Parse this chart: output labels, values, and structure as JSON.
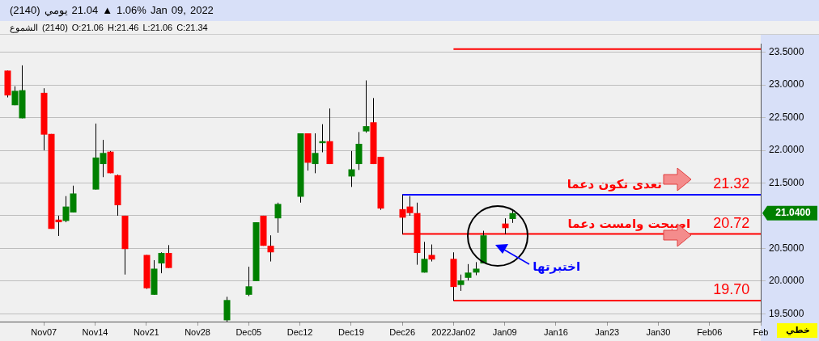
{
  "chart_data": {
    "type": "candlestick",
    "title": "(2140)  يومي  21.04 ▲ 1.06%  Jan 09, 2022",
    "subtitle": "الشموع (2140) O:21.06 H:21.46 L:21.06 C:21.34",
    "x": [
      "2021-11-02",
      "2021-11-03",
      "2021-11-04",
      "2021-11-07",
      "2021-11-08",
      "2021-11-09",
      "2021-11-10",
      "2021-11-11",
      "2021-11-14",
      "2021-11-15",
      "2021-11-16",
      "2021-11-17",
      "2021-11-18",
      "2021-11-21",
      "2021-11-22",
      "2021-11-23",
      "2021-11-24",
      "2021-12-02",
      "2021-12-05",
      "2021-12-06",
      "2021-12-07",
      "2021-12-08",
      "2021-12-09",
      "2021-12-12",
      "2021-12-13",
      "2021-12-14",
      "2021-12-15",
      "2021-12-16",
      "2021-12-19",
      "2021-12-20",
      "2021-12-21",
      "2021-12-22",
      "2021-12-23",
      "2021-12-26",
      "2021-12-27",
      "2021-12-28",
      "2021-12-29",
      "2021-12-30",
      "2022-01-02",
      "2022-01-03",
      "2022-01-04",
      "2022-01-05",
      "2022-01-06",
      "2022-01-09",
      "2022-01-10"
    ],
    "ohlc": [
      [
        23.22,
        23.22,
        22.81,
        22.84
      ],
      [
        22.69,
        22.98,
        22.69,
        22.91
      ],
      [
        22.49,
        23.3,
        22.49,
        22.92
      ],
      [
        22.88,
        22.95,
        22.0,
        22.24
      ],
      [
        22.25,
        22.25,
        20.8,
        20.8
      ],
      [
        20.94,
        21.0,
        20.69,
        20.9
      ],
      [
        20.92,
        21.3,
        20.9,
        21.14
      ],
      [
        21.05,
        21.46,
        21.05,
        21.34
      ],
      [
        21.4,
        22.41,
        21.4,
        21.89
      ],
      [
        21.79,
        22.16,
        21.59,
        21.96
      ],
      [
        21.98,
        21.99,
        21.65,
        21.65
      ],
      [
        21.62,
        21.63,
        21.0,
        21.16
      ],
      [
        21.0,
        21.0,
        20.1,
        20.49
      ],
      [
        20.4,
        20.4,
        19.88,
        19.89
      ],
      [
        19.79,
        20.32,
        19.79,
        20.19
      ],
      [
        20.27,
        20.44,
        20.12,
        20.43
      ],
      [
        20.43,
        20.55,
        20.2,
        20.2
      ],
      [
        19.4,
        19.76,
        19.38,
        19.71
      ],
      [
        19.79,
        20.22,
        19.77,
        19.92
      ],
      [
        20.0,
        20.9,
        20.0,
        20.9
      ],
      [
        21.0,
        21.0,
        20.54,
        20.54
      ],
      [
        20.54,
        20.7,
        20.3,
        20.44
      ],
      [
        20.96,
        21.2,
        20.74,
        21.18
      ],
      [
        21.29,
        22.26,
        21.2,
        22.26
      ],
      [
        22.26,
        22.26,
        21.69,
        21.81
      ],
      [
        21.79,
        22.26,
        21.65,
        21.96
      ],
      [
        22.11,
        22.4,
        21.97,
        22.14
      ],
      [
        22.14,
        22.64,
        21.79,
        21.79
      ],
      [
        21.6,
        21.99,
        21.44,
        21.71
      ],
      [
        21.79,
        22.28,
        21.7,
        22.1
      ],
      [
        22.29,
        23.07,
        22.27,
        22.37
      ],
      [
        22.43,
        22.8,
        21.79,
        21.79
      ],
      [
        21.9,
        21.9,
        21.09,
        21.11
      ],
      [
        21.1,
        21.32,
        20.72,
        20.97
      ],
      [
        21.14,
        21.3,
        21.0,
        21.04
      ],
      [
        21.04,
        21.2,
        20.25,
        20.43
      ],
      [
        20.13,
        20.6,
        20.13,
        20.34
      ],
      [
        20.4,
        20.56,
        20.3,
        20.33
      ],
      [
        20.34,
        20.44,
        19.7,
        19.91
      ],
      [
        19.94,
        20.1,
        19.85,
        20.01
      ],
      [
        20.05,
        20.26,
        20.01,
        20.13
      ],
      [
        20.13,
        20.29,
        20.09,
        20.19
      ],
      [
        20.27,
        20.77,
        20.27,
        20.7
      ],
      [
        20.88,
        20.96,
        20.72,
        20.81
      ],
      [
        20.95,
        21.1,
        20.89,
        21.04
      ]
    ],
    "colors": [
      "#ff0000",
      "#008000",
      "#008000",
      "#ff0000",
      "#ff0000",
      "#ff0000",
      "#008000",
      "#008000",
      "#008000",
      "#008000",
      "#ff0000",
      "#ff0000",
      "#ff0000",
      "#ff0000",
      "#008000",
      "#008000",
      "#ff0000",
      "#008000",
      "#008000",
      "#008000",
      "#ff0000",
      "#ff0000",
      "#008000",
      "#008000",
      "#ff0000",
      "#008000",
      "#008000",
      "#ff0000",
      "#008000",
      "#008000",
      "#008000",
      "#ff0000",
      "#ff0000",
      "#ff0000",
      "#ff0000",
      "#ff0000",
      "#008000",
      "#ff0000",
      "#ff0000",
      "#008000",
      "#008000",
      "#008000",
      "#008000",
      "#ff0000",
      "#008000"
    ],
    "series": [
      {
        "type": "line",
        "color": "#ff0000",
        "x": [
          "2022-01-02",
          "2022-02-13"
        ],
        "values": [
          23.55,
          23.55
        ]
      },
      {
        "type": "line",
        "color": "#0000ff",
        "x": [
          "2021-12-26",
          "2022-02-13"
        ],
        "values": [
          21.32,
          21.32
        ]
      },
      {
        "type": "line",
        "color": "#ff0000",
        "x": [
          "2021-12-26",
          "2022-02-13"
        ],
        "values": [
          20.72,
          20.72
        ]
      },
      {
        "type": "line",
        "color": "#ff0000",
        "x": [
          "2022-01-02",
          "2022-02-13"
        ],
        "values": [
          19.7,
          19.7
        ]
      }
    ],
    "xlim": [
      "2021-11-01",
      "2022-02-13"
    ],
    "xticks": [
      {
        "value": "2021-11-07",
        "label": "Nov07"
      },
      {
        "value": "2021-11-14",
        "label": "Nov14"
      },
      {
        "value": "2021-11-21",
        "label": "Nov21"
      },
      {
        "value": "2021-11-28",
        "label": "Nov28"
      },
      {
        "value": "2021-12-05",
        "label": "Dec05"
      },
      {
        "value": "2021-12-12",
        "label": "Dec12"
      },
      {
        "value": "2021-12-19",
        "label": "Dec19"
      },
      {
        "value": "2021-12-26",
        "label": "Dec26"
      },
      {
        "value": "2022-01-02",
        "label": "2022Jan02"
      },
      {
        "value": "2022-01-09",
        "label": "Jan09"
      },
      {
        "value": "2022-01-16",
        "label": "Jan16"
      },
      {
        "value": "2022-01-23",
        "label": "Jan23"
      },
      {
        "value": "2022-01-30",
        "label": "Jan30"
      },
      {
        "value": "2022-02-06",
        "label": "Feb06"
      },
      {
        "value": "2022-02-13",
        "label": "Feb"
      }
    ],
    "ylim": [
      19.38,
      23.63
    ],
    "yticks": [
      {
        "value": 19.5,
        "label": "19.5000"
      },
      {
        "value": 20,
        "label": "20.0000"
      },
      {
        "value": 20.5,
        "label": "20.5000"
      },
      {
        "value": 21,
        "label": null
      },
      {
        "value": 21.5,
        "label": "21.5000"
      },
      {
        "value": 22,
        "label": "22.0000"
      },
      {
        "value": 22.5,
        "label": "22.5000"
      },
      {
        "value": 23,
        "label": "23.0000"
      },
      {
        "value": 23.5,
        "label": "23.5000"
      }
    ],
    "grid": "y",
    "annotations": [
      {
        "text": "تعدى تكون دعما",
        "x": "2022-01-24",
        "y": 21.32
      },
      {
        "text": "اصبحت وامست دعما",
        "x": "2022-01-26",
        "y": 20.72
      },
      "اختبرتها",
      {
        "text": "21.32",
        "x": "2022-02-09",
        "y": 21.32
      },
      {
        "text": "20.72",
        "x": "2022-02-09",
        "y": 20.72
      },
      {
        "text": "19.70",
        "x": "2022-02-09",
        "y": 19.7
      },
      "21.0400",
      "خطي"
    ]
  }
}
